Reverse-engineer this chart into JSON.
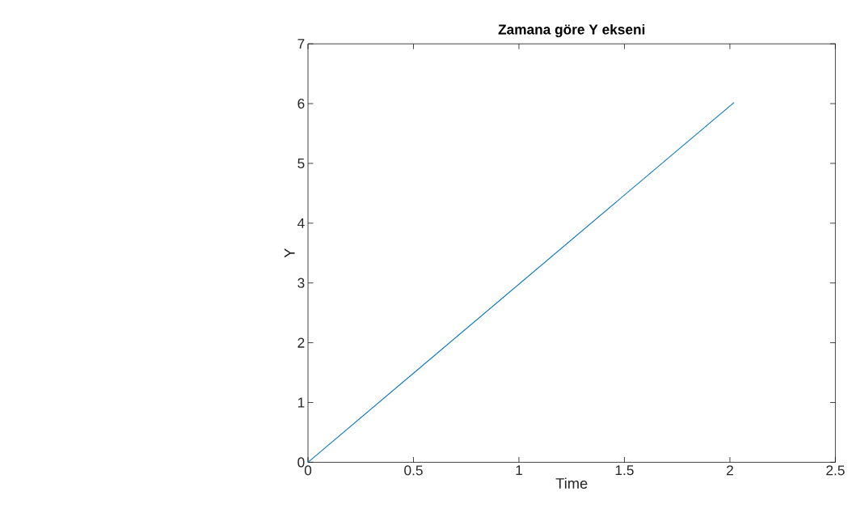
{
  "chart_data": {
    "type": "line",
    "title": "Zamana göre Y ekseni",
    "xlabel": "Time",
    "ylabel": "Y",
    "x": [
      0,
      2.02
    ],
    "series": [
      {
        "color": "#0072bd",
        "values": [
          0,
          6.02
        ]
      }
    ],
    "xlim": [
      0,
      2.5
    ],
    "xticks": [
      0,
      0.5,
      1,
      1.5,
      2,
      2.5
    ],
    "ylim": [
      0,
      7
    ],
    "yticks": [
      0,
      1,
      2,
      3,
      4,
      5,
      6,
      7
    ],
    "grid": false,
    "marker": "none",
    "line_style": "solid"
  }
}
